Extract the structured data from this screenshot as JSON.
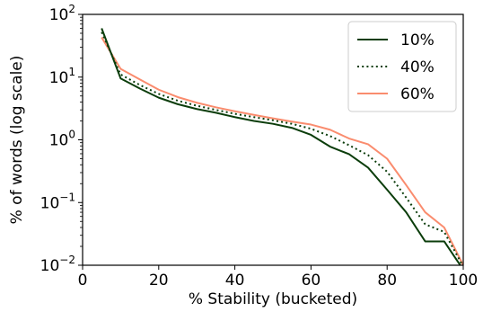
{
  "chart_data": {
    "type": "line",
    "title": "",
    "xlabel": "% Stability (bucketed)",
    "ylabel": "% of words (log scale)",
    "xlim": [
      0,
      100
    ],
    "ylim": [
      0.01,
      100
    ],
    "yscale": "log",
    "grid": false,
    "legend_position": "top-right",
    "x_ticks": [
      {
        "value": 0,
        "label": "0"
      },
      {
        "value": 20,
        "label": "20"
      },
      {
        "value": 40,
        "label": "40"
      },
      {
        "value": 60,
        "label": "60"
      },
      {
        "value": 80,
        "label": "80"
      },
      {
        "value": 100,
        "label": "100"
      }
    ],
    "y_ticks": [
      {
        "value": 0.01,
        "base": "10",
        "exp": "−2"
      },
      {
        "value": 0.1,
        "base": "10",
        "exp": "−1"
      },
      {
        "value": 1,
        "base": "10",
        "exp": "0"
      },
      {
        "value": 10,
        "base": "10",
        "exp": "1"
      },
      {
        "value": 100,
        "base": "10",
        "exp": "2"
      }
    ],
    "x": [
      5,
      10,
      15,
      20,
      25,
      30,
      35,
      40,
      45,
      50,
      55,
      60,
      65,
      70,
      75,
      80,
      85,
      90,
      95,
      100
    ],
    "series": [
      {
        "name": "10%",
        "color": "#0b3d0b",
        "style": "solid",
        "values": [
          60,
          9.5,
          6.6,
          4.7,
          3.7,
          3.1,
          2.7,
          2.3,
          2.0,
          1.8,
          1.55,
          1.2,
          0.78,
          0.59,
          0.36,
          0.16,
          0.07,
          0.024,
          0.024,
          0.0085
        ]
      },
      {
        "name": "40%",
        "color": "#0b3d0b",
        "style": "dotted",
        "values": [
          52,
          11,
          7.5,
          5.4,
          4.2,
          3.5,
          3.0,
          2.6,
          2.3,
          2.05,
          1.8,
          1.5,
          1.15,
          0.82,
          0.57,
          0.31,
          0.12,
          0.045,
          0.034,
          0.0095
        ]
      },
      {
        "name": "60%",
        "color": "#fa8c6e",
        "style": "solid",
        "values": [
          43,
          13.5,
          9.2,
          6.3,
          4.8,
          3.9,
          3.3,
          2.85,
          2.5,
          2.2,
          1.95,
          1.75,
          1.45,
          1.05,
          0.85,
          0.5,
          0.19,
          0.07,
          0.04,
          0.01
        ]
      }
    ]
  }
}
